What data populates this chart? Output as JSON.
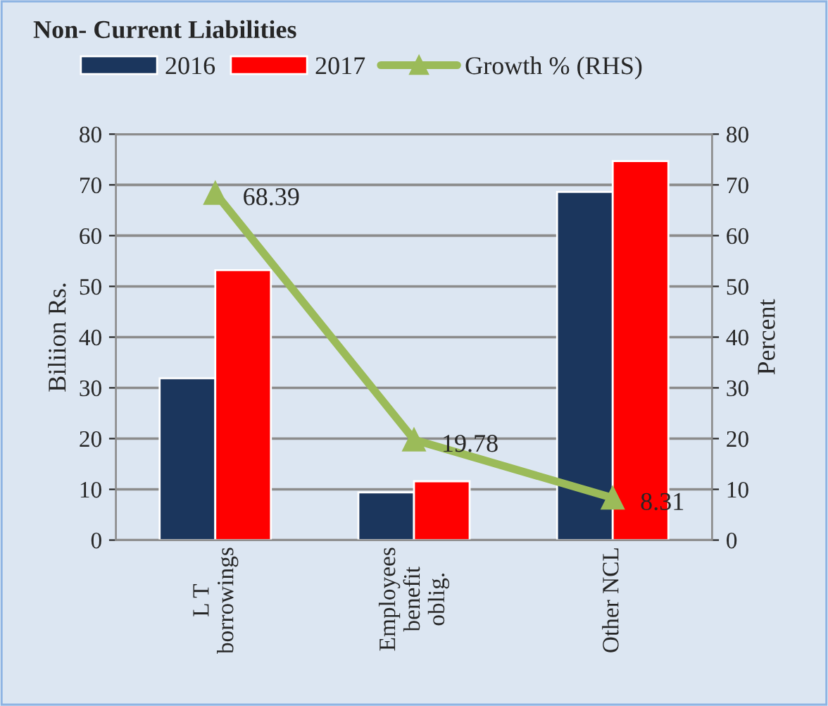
{
  "chart_data": {
    "type": "bar",
    "title": "Non- Current Liabilities",
    "ylabel": "Biliion Rs.",
    "y2label": "Percent",
    "categories": [
      "L T\nborrowings",
      "Employees\nbenefit\noblig.",
      "Other NCL"
    ],
    "series": [
      {
        "name": "2016",
        "color": "#1b365d",
        "values": [
          31.9,
          9.4,
          68.6
        ]
      },
      {
        "name": "2017",
        "color": "#ff0000",
        "values": [
          53.2,
          11.6,
          74.7
        ]
      },
      {
        "name": "Growth % (RHS)",
        "type": "line",
        "axis": "y2",
        "color": "#9bbb59",
        "marker": "triangle",
        "values": [
          68.39,
          19.78,
          8.31
        ],
        "value_labels": [
          "68.39",
          "19.78",
          "8.31"
        ]
      }
    ],
    "ylim": [
      0,
      80
    ],
    "yticks": [
      0,
      10,
      20,
      30,
      40,
      50,
      60,
      70,
      80
    ],
    "y2lim": [
      0,
      80
    ],
    "y2ticks": [
      0,
      10,
      20,
      30,
      40,
      50,
      60,
      70,
      80
    ],
    "grid": "y",
    "legend": "top"
  }
}
